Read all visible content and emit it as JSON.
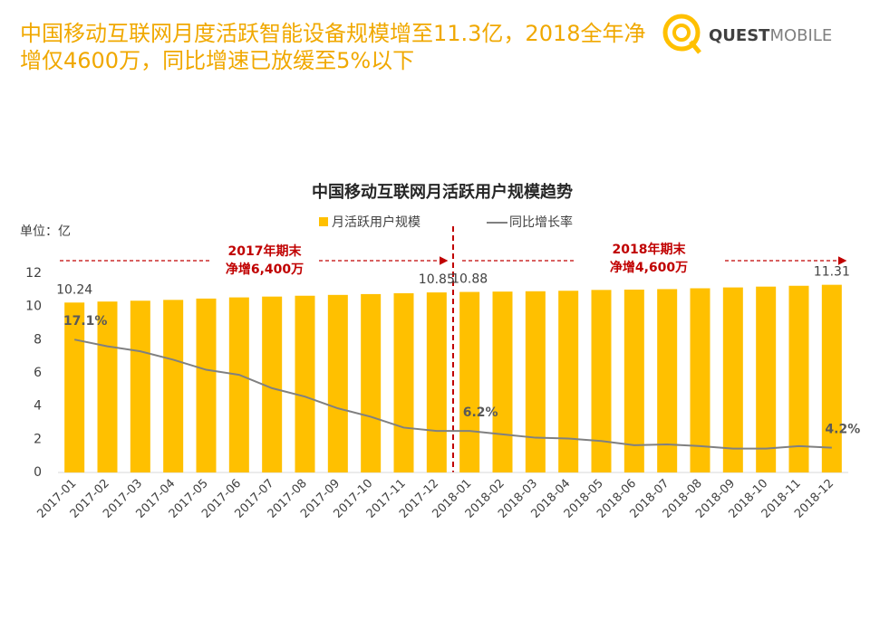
{
  "logo": [
    "QUEST",
    "MOBILE"
  ],
  "chart_data": {
    "type": "bar",
    "headline": [
      "中国移动互联网月度活跃智能设备规模增至11.3亿，2018全年净",
      "增仅4600万，同比增速已放缓至5%以下"
    ],
    "title": "中国移动互联网月活跃用户规模趋势",
    "unit_label": "单位：亿",
    "categories": [
      "2017-01",
      "2017-02",
      "2017-03",
      "2017-04",
      "2017-05",
      "2017-06",
      "2017-07",
      "2017-08",
      "2017-09",
      "2017-10",
      "2017-11",
      "2017-12",
      "2018-01",
      "2018-02",
      "2018-03",
      "2018-04",
      "2018-05",
      "2018-06",
      "2018-07",
      "2018-08",
      "2018-09",
      "2018-10",
      "2018-11",
      "2018-12"
    ],
    "series": [
      {
        "name": "月活跃用户规模",
        "color": "#ffc000",
        "values": [
          10.24,
          10.3,
          10.35,
          10.4,
          10.48,
          10.55,
          10.6,
          10.65,
          10.7,
          10.75,
          10.8,
          10.85,
          10.88,
          10.9,
          10.92,
          10.95,
          11.0,
          11.02,
          11.05,
          11.1,
          11.15,
          11.2,
          11.25,
          11.31
        ],
        "value_labels": [
          "10.24",
          null,
          null,
          null,
          null,
          null,
          null,
          null,
          null,
          null,
          null,
          "10.85",
          "10.88",
          null,
          null,
          null,
          null,
          null,
          null,
          null,
          null,
          null,
          null,
          "11.31"
        ]
      },
      {
        "name": "同比增长率",
        "color": "#808080",
        "type": "line",
        "axis": "y2",
        "values": [
          17.1,
          16.3,
          15.7,
          14.7,
          13.5,
          12.9,
          11.3,
          10.3,
          8.9,
          7.9,
          6.6,
          6.2,
          6.2,
          5.8,
          5.4,
          5.3,
          5.0,
          4.5,
          4.6,
          4.4,
          4.1,
          4.1,
          4.4,
          4.2
        ],
        "value_labels": [
          "17.1%",
          null,
          null,
          null,
          null,
          null,
          null,
          null,
          null,
          null,
          null,
          null,
          "6.2%",
          null,
          null,
          null,
          null,
          null,
          null,
          null,
          null,
          null,
          null,
          "4.2%"
        ]
      }
    ],
    "ylim": [
      0,
      12
    ],
    "yticks": [
      0,
      2,
      4,
      6,
      8,
      10,
      12
    ],
    "y2lim": [
      1.25,
      25
    ],
    "annotations": [
      [
        "2017年期末",
        "净增6,400万"
      ],
      [
        "2018年期末",
        "净增4,600万"
      ]
    ]
  }
}
